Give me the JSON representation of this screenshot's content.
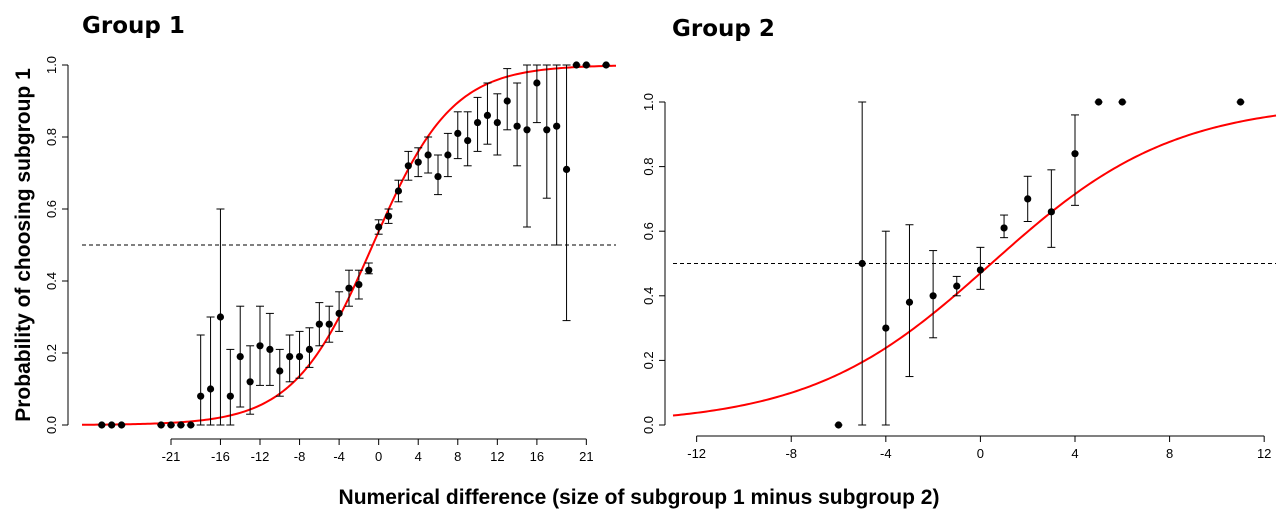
{
  "chart_data": [
    {
      "type": "scatter",
      "title": "Group 1",
      "ylabel": "Probability of choosing subgroup 1",
      "xlabel": "Numerical difference (size of subgroup 1 minus subgroup 2)",
      "xlim": [
        -30,
        24
      ],
      "ylim": [
        0,
        1
      ],
      "x_ticks": [
        -21,
        -16,
        -12,
        -8,
        -4,
        0,
        4,
        8,
        12,
        16,
        21
      ],
      "y_ticks": [
        0.0,
        0.2,
        0.4,
        0.6,
        0.8,
        1.0
      ],
      "y_tick_labels": [
        "0.0",
        "0.2",
        "0.4",
        "0.6",
        "0.8",
        "1.0"
      ],
      "reference_line": 0.5,
      "fit_curve": {
        "type": "logistic",
        "intercept": 0.15,
        "slope": 0.25,
        "color": "#ff0000"
      },
      "points": [
        {
          "x": -28,
          "y": 0.0,
          "lo": 0.0,
          "hi": 0.0
        },
        {
          "x": -27,
          "y": 0.0,
          "lo": 0.0,
          "hi": 0.0
        },
        {
          "x": -26,
          "y": 0.0,
          "lo": 0.0,
          "hi": 0.0
        },
        {
          "x": -22,
          "y": 0.0,
          "lo": 0.0,
          "hi": 0.0
        },
        {
          "x": -21,
          "y": 0.0,
          "lo": 0.0,
          "hi": 0.0
        },
        {
          "x": -20,
          "y": 0.0,
          "lo": 0.0,
          "hi": 0.0
        },
        {
          "x": -19,
          "y": 0.0,
          "lo": 0.0,
          "hi": 0.0
        },
        {
          "x": -18,
          "y": 0.08,
          "lo": 0.0,
          "hi": 0.25
        },
        {
          "x": -17,
          "y": 0.1,
          "lo": 0.0,
          "hi": 0.3
        },
        {
          "x": -16,
          "y": 0.3,
          "lo": 0.0,
          "hi": 0.6
        },
        {
          "x": -15,
          "y": 0.08,
          "lo": 0.0,
          "hi": 0.21
        },
        {
          "x": -14,
          "y": 0.19,
          "lo": 0.05,
          "hi": 0.33
        },
        {
          "x": -13,
          "y": 0.12,
          "lo": 0.03,
          "hi": 0.22
        },
        {
          "x": -12,
          "y": 0.22,
          "lo": 0.11,
          "hi": 0.33
        },
        {
          "x": -11,
          "y": 0.21,
          "lo": 0.11,
          "hi": 0.31
        },
        {
          "x": -10,
          "y": 0.15,
          "lo": 0.08,
          "hi": 0.21
        },
        {
          "x": -9,
          "y": 0.19,
          "lo": 0.12,
          "hi": 0.25
        },
        {
          "x": -8,
          "y": 0.19,
          "lo": 0.13,
          "hi": 0.26
        },
        {
          "x": -7,
          "y": 0.21,
          "lo": 0.16,
          "hi": 0.27
        },
        {
          "x": -6,
          "y": 0.28,
          "lo": 0.22,
          "hi": 0.34
        },
        {
          "x": -5,
          "y": 0.28,
          "lo": 0.23,
          "hi": 0.33
        },
        {
          "x": -4,
          "y": 0.31,
          "lo": 0.26,
          "hi": 0.37
        },
        {
          "x": -3,
          "y": 0.38,
          "lo": 0.33,
          "hi": 0.43
        },
        {
          "x": -2,
          "y": 0.39,
          "lo": 0.35,
          "hi": 0.43
        },
        {
          "x": -1,
          "y": 0.43,
          "lo": 0.42,
          "hi": 0.45
        },
        {
          "x": 0,
          "y": 0.55,
          "lo": 0.53,
          "hi": 0.57
        },
        {
          "x": 1,
          "y": 0.58,
          "lo": 0.56,
          "hi": 0.6
        },
        {
          "x": 2,
          "y": 0.65,
          "lo": 0.62,
          "hi": 0.68
        },
        {
          "x": 3,
          "y": 0.72,
          "lo": 0.68,
          "hi": 0.76
        },
        {
          "x": 4,
          "y": 0.73,
          "lo": 0.69,
          "hi": 0.77
        },
        {
          "x": 5,
          "y": 0.75,
          "lo": 0.7,
          "hi": 0.8
        },
        {
          "x": 6,
          "y": 0.69,
          "lo": 0.64,
          "hi": 0.75
        },
        {
          "x": 7,
          "y": 0.75,
          "lo": 0.69,
          "hi": 0.81
        },
        {
          "x": 8,
          "y": 0.81,
          "lo": 0.74,
          "hi": 0.87
        },
        {
          "x": 9,
          "y": 0.79,
          "lo": 0.72,
          "hi": 0.87
        },
        {
          "x": 10,
          "y": 0.84,
          "lo": 0.76,
          "hi": 0.91
        },
        {
          "x": 11,
          "y": 0.86,
          "lo": 0.78,
          "hi": 0.95
        },
        {
          "x": 12,
          "y": 0.84,
          "lo": 0.75,
          "hi": 0.92
        },
        {
          "x": 13,
          "y": 0.9,
          "lo": 0.82,
          "hi": 0.99
        },
        {
          "x": 14,
          "y": 0.83,
          "lo": 0.72,
          "hi": 0.95
        },
        {
          "x": 15,
          "y": 0.82,
          "lo": 0.55,
          "hi": 1.0
        },
        {
          "x": 16,
          "y": 0.95,
          "lo": 0.84,
          "hi": 1.0
        },
        {
          "x": 17,
          "y": 0.82,
          "lo": 0.63,
          "hi": 1.0
        },
        {
          "x": 18,
          "y": 0.83,
          "lo": 0.5,
          "hi": 1.0
        },
        {
          "x": 19,
          "y": 0.71,
          "lo": 0.29,
          "hi": 1.0
        },
        {
          "x": 20,
          "y": 1.0,
          "lo": 1.0,
          "hi": 1.0
        },
        {
          "x": 21,
          "y": 1.0,
          "lo": 1.0,
          "hi": 1.0
        },
        {
          "x": 23,
          "y": 1.0,
          "lo": 1.0,
          "hi": 1.0
        }
      ]
    },
    {
      "type": "scatter",
      "title": "Group 2",
      "ylabel": "",
      "xlabel": "Numerical difference (size of subgroup 1 minus subgroup 2)",
      "xlim": [
        -13,
        12.5
      ],
      "ylim": [
        0,
        1
      ],
      "x_ticks": [
        -12,
        -8,
        -4,
        0,
        4,
        8,
        12
      ],
      "y_ticks": [
        0.0,
        0.2,
        0.4,
        0.6,
        0.8,
        1.0
      ],
      "y_tick_labels": [
        "0.0",
        "0.2",
        "0.4",
        "0.6",
        "0.8",
        "1.0"
      ],
      "reference_line": 0.5,
      "fit_curve": {
        "type": "logistic",
        "intercept": -0.12,
        "slope": 0.26,
        "color": "#ff0000"
      },
      "points": [
        {
          "x": -6,
          "y": 0.0,
          "lo": 0.0,
          "hi": 0.0
        },
        {
          "x": -5,
          "y": 0.5,
          "lo": 0.0,
          "hi": 1.0
        },
        {
          "x": -4,
          "y": 0.3,
          "lo": 0.0,
          "hi": 0.6
        },
        {
          "x": -3,
          "y": 0.38,
          "lo": 0.15,
          "hi": 0.62
        },
        {
          "x": -2,
          "y": 0.4,
          "lo": 0.27,
          "hi": 0.54
        },
        {
          "x": -1,
          "y": 0.43,
          "lo": 0.4,
          "hi": 0.46
        },
        {
          "x": 0,
          "y": 0.48,
          "lo": 0.42,
          "hi": 0.55
        },
        {
          "x": 1,
          "y": 0.61,
          "lo": 0.58,
          "hi": 0.65
        },
        {
          "x": 2,
          "y": 0.7,
          "lo": 0.63,
          "hi": 0.77
        },
        {
          "x": 3,
          "y": 0.66,
          "lo": 0.55,
          "hi": 0.79
        },
        {
          "x": 4,
          "y": 0.84,
          "lo": 0.68,
          "hi": 0.96
        },
        {
          "x": 5,
          "y": 1.0,
          "lo": 1.0,
          "hi": 1.0
        },
        {
          "x": 6,
          "y": 1.0,
          "lo": 1.0,
          "hi": 1.0
        },
        {
          "x": 11,
          "y": 1.0,
          "lo": 1.0,
          "hi": 1.0
        }
      ]
    }
  ],
  "colors": {
    "fit": "#ff0000",
    "points": "#000000",
    "reference": "#000000"
  }
}
